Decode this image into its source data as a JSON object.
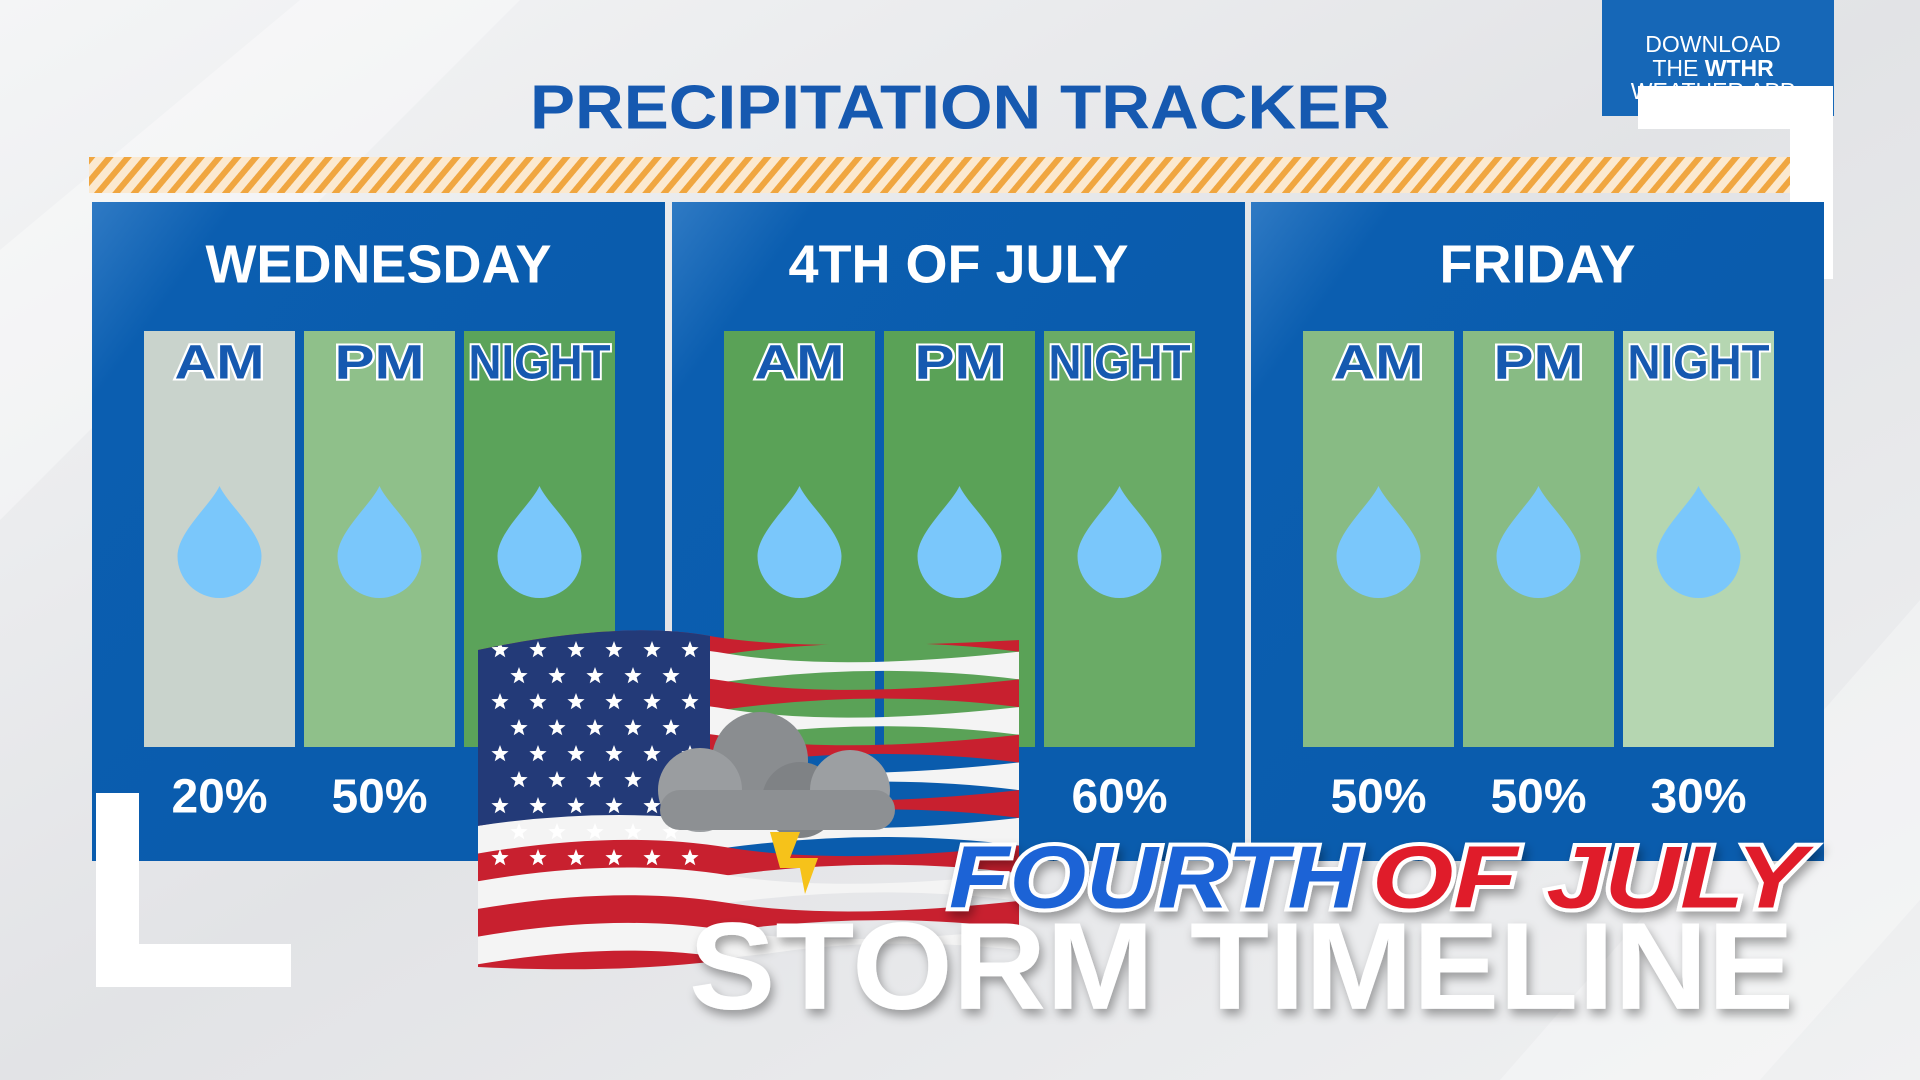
{
  "header": {
    "title": "PRECIPITATION TRACKER"
  },
  "app_badge": {
    "line1": "DOWNLOAD",
    "line2_prefix": "THE",
    "line2_brand": "WTHR",
    "line3": "WEATHER APP"
  },
  "days": [
    {
      "name": "WEDNESDAY",
      "periods": [
        {
          "label": "AM",
          "percent": "20%"
        },
        {
          "label": "PM",
          "percent": "50%"
        },
        {
          "label": "NIGHT"
        }
      ]
    },
    {
      "name": "4TH OF JULY",
      "periods": [
        {
          "label": "AM"
        },
        {
          "label": "PM"
        },
        {
          "label": "NIGHT",
          "percent": "60%"
        }
      ]
    },
    {
      "name": "FRIDAY",
      "periods": [
        {
          "label": "AM",
          "percent": "50%"
        },
        {
          "label": "PM",
          "percent": "50%"
        },
        {
          "label": "NIGHT",
          "percent": "30%"
        }
      ]
    }
  ],
  "headline": {
    "line1_a": "FOURTH",
    "line1_b": "OF JULY",
    "line2": "STORM TIMELINE"
  }
}
